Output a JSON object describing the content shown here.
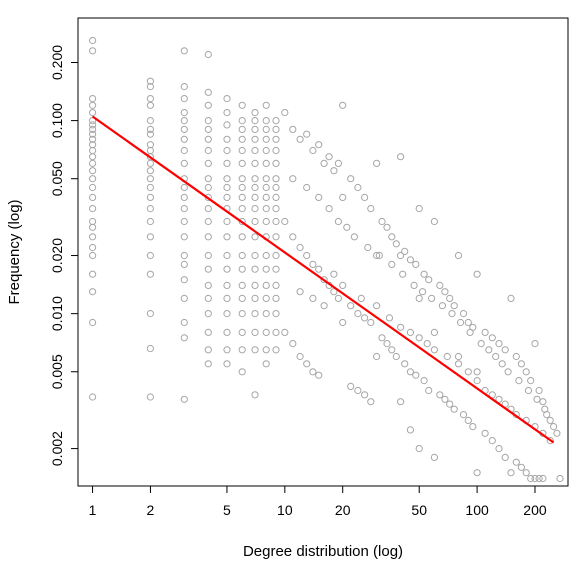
{
  "chart_data": {
    "type": "scatter",
    "title": "",
    "xlabel": "Degree distribution (log)",
    "ylabel": "Frequency (log)",
    "xscale": "log",
    "yscale": "log",
    "xlim": [
      0.84,
      297
    ],
    "ylim": [
      0.00128,
      0.34
    ],
    "xticks": [
      {
        "value": 1,
        "label": "1"
      },
      {
        "value": 2,
        "label": "2"
      },
      {
        "value": 5,
        "label": "5"
      },
      {
        "value": 10,
        "label": "10"
      },
      {
        "value": 20,
        "label": "20"
      },
      {
        "value": 50,
        "label": "50"
      },
      {
        "value": 100,
        "label": "100"
      },
      {
        "value": 200,
        "label": "200"
      }
    ],
    "yticks": [
      {
        "value": 0.002,
        "label": "0.002"
      },
      {
        "value": 0.005,
        "label": "0.005"
      },
      {
        "value": 0.01,
        "label": "0.010"
      },
      {
        "value": 0.02,
        "label": "0.020"
      },
      {
        "value": 0.05,
        "label": "0.050"
      },
      {
        "value": 0.1,
        "label": "0.100"
      },
      {
        "value": 0.2,
        "label": "0.200"
      }
    ],
    "grid": false,
    "point_color": "#a6a6a6",
    "fit_color": "#ff0000",
    "series": [
      {
        "kind": "points",
        "x": [
          1,
          1,
          1,
          1,
          1,
          1,
          1,
          1,
          1,
          1,
          1,
          1,
          1,
          1,
          1,
          1,
          1,
          1,
          1,
          1,
          1,
          1,
          1,
          1,
          1,
          1,
          1,
          1,
          2,
          2,
          2,
          2,
          2,
          2,
          2,
          2,
          2,
          2,
          2,
          2,
          2,
          2,
          2,
          2,
          2,
          2,
          2,
          2,
          2,
          2,
          2,
          3,
          3,
          3,
          3,
          3,
          3,
          3,
          3,
          3,
          3,
          3,
          3,
          3,
          3,
          3,
          3,
          3,
          3,
          3,
          3,
          3,
          3,
          4,
          4,
          4,
          4,
          4,
          4,
          4,
          4,
          4,
          4,
          4,
          4,
          4,
          4,
          4,
          4,
          4,
          4,
          4,
          4,
          4,
          4,
          5,
          5,
          5,
          5,
          5,
          5,
          5,
          5,
          5,
          5,
          5,
          5,
          5,
          5,
          5,
          5,
          5,
          5,
          5,
          5,
          6,
          6,
          6,
          6,
          6,
          6,
          6,
          6,
          6,
          6,
          6,
          6,
          6,
          6,
          6,
          6,
          6,
          6,
          6,
          6,
          7,
          7,
          7,
          7,
          7,
          7,
          7,
          7,
          7,
          7,
          7,
          7,
          7,
          7,
          7,
          7,
          7,
          7,
          7,
          7,
          8,
          8,
          8,
          8,
          8,
          8,
          8,
          8,
          8,
          8,
          8,
          8,
          8,
          8,
          8,
          8,
          8,
          8,
          8,
          8,
          9,
          9,
          9,
          9,
          9,
          9,
          9,
          9,
          9,
          9,
          9,
          9,
          9,
          9,
          9,
          9,
          9,
          9
        ],
        "y": [
          0.26,
          0.23,
          0.13,
          0.12,
          0.11,
          0.1,
          0.095,
          0.09,
          0.085,
          0.08,
          0.075,
          0.07,
          0.065,
          0.06,
          0.055,
          0.05,
          0.045,
          0.04,
          0.035,
          0.03,
          0.028,
          0.025,
          0.022,
          0.02,
          0.016,
          0.013,
          0.009,
          0.0037,
          0.16,
          0.15,
          0.13,
          0.12,
          0.1,
          0.09,
          0.085,
          0.075,
          0.07,
          0.065,
          0.06,
          0.055,
          0.05,
          0.045,
          0.04,
          0.035,
          0.03,
          0.025,
          0.02,
          0.016,
          0.01,
          0.0066,
          0.0037,
          0.23,
          0.15,
          0.13,
          0.11,
          0.1,
          0.09,
          0.08,
          0.07,
          0.06,
          0.05,
          0.045,
          0.04,
          0.035,
          0.03,
          0.025,
          0.02,
          0.018,
          0.015,
          0.012,
          0.009,
          0.0075,
          0.0036,
          0.22,
          0.14,
          0.12,
          0.1,
          0.09,
          0.08,
          0.07,
          0.06,
          0.05,
          0.045,
          0.04,
          0.035,
          0.03,
          0.025,
          0.02,
          0.017,
          0.014,
          0.012,
          0.01,
          0.008,
          0.0065,
          0.0055,
          0.13,
          0.11,
          0.095,
          0.08,
          0.07,
          0.06,
          0.05,
          0.045,
          0.04,
          0.035,
          0.03,
          0.025,
          0.02,
          0.017,
          0.014,
          0.012,
          0.01,
          0.008,
          0.0065,
          0.0055,
          0.12,
          0.1,
          0.09,
          0.08,
          0.07,
          0.06,
          0.05,
          0.045,
          0.04,
          0.035,
          0.03,
          0.025,
          0.02,
          0.017,
          0.014,
          0.012,
          0.01,
          0.008,
          0.0065,
          0.005,
          0.11,
          0.1,
          0.09,
          0.08,
          0.07,
          0.06,
          0.05,
          0.045,
          0.04,
          0.035,
          0.03,
          0.025,
          0.02,
          0.017,
          0.014,
          0.012,
          0.01,
          0.008,
          0.0065,
          0.0038,
          0.12,
          0.1,
          0.09,
          0.08,
          0.07,
          0.06,
          0.05,
          0.045,
          0.04,
          0.035,
          0.03,
          0.025,
          0.02,
          0.017,
          0.014,
          0.012,
          0.01,
          0.008,
          0.0065,
          0.0055,
          0.1,
          0.09,
          0.08,
          0.07,
          0.06,
          0.05,
          0.045,
          0.04,
          0.035,
          0.03,
          0.025,
          0.02,
          0.017,
          0.014,
          0.012,
          0.01,
          0.008,
          0.0065
        ]
      },
      {
        "kind": "points",
        "description_range": {
          "x": [
            10,
            270
          ],
          "y": [
            0.00135,
            0.12
          ]
        },
        "x": [
          10,
          10,
          10,
          11,
          11,
          11,
          12,
          12,
          12,
          13,
          13,
          13,
          14,
          14,
          14,
          15,
          15,
          15,
          16,
          16,
          17,
          17,
          18,
          18,
          19,
          19,
          20,
          20,
          20,
          22,
          22,
          22,
          24,
          24,
          24,
          26,
          26,
          26,
          28,
          28,
          28,
          30,
          30,
          30,
          32,
          32,
          34,
          34,
          36,
          36,
          38,
          38,
          40,
          40,
          40,
          42,
          42,
          45,
          45,
          45,
          48,
          48,
          50,
          50,
          50,
          53,
          53,
          56,
          56,
          60,
          60,
          60,
          64,
          64,
          68,
          68,
          72,
          72,
          76,
          76,
          80,
          80,
          85,
          85,
          90,
          90,
          95,
          95,
          100,
          100,
          100,
          110,
          110,
          120,
          120,
          130,
          130,
          140,
          140,
          150,
          150,
          160,
          160,
          170,
          170,
          180,
          180,
          190,
          190,
          200,
          200,
          210,
          210,
          220,
          220,
          230,
          240,
          250,
          260,
          270,
          12,
          14,
          16,
          18,
          20,
          25,
          30,
          35,
          40,
          45,
          50,
          55,
          60,
          70,
          80,
          90,
          100,
          110,
          120,
          130,
          140,
          150,
          160,
          180,
          200,
          220,
          240,
          11,
          13,
          15,
          17,
          19,
          21,
          23,
          27,
          31,
          36,
          41,
          47,
          52,
          58,
          66,
          74,
          82,
          92,
          105,
          115,
          125,
          135,
          145,
          165,
          185,
          205,
          225
        ],
        "y": [
          0.11,
          0.03,
          0.008,
          0.09,
          0.025,
          0.007,
          0.08,
          0.022,
          0.006,
          0.085,
          0.02,
          0.0055,
          0.07,
          0.018,
          0.005,
          0.075,
          0.017,
          0.0048,
          0.06,
          0.015,
          0.065,
          0.014,
          0.055,
          0.013,
          0.06,
          0.012,
          0.12,
          0.04,
          0.009,
          0.05,
          0.011,
          0.0042,
          0.045,
          0.01,
          0.004,
          0.04,
          0.0095,
          0.0038,
          0.035,
          0.009,
          0.0035,
          0.06,
          0.02,
          0.006,
          0.03,
          0.0075,
          0.028,
          0.007,
          0.025,
          0.0065,
          0.023,
          0.006,
          0.065,
          0.02,
          0.0035,
          0.021,
          0.0055,
          0.019,
          0.005,
          0.0025,
          0.018,
          0.0048,
          0.035,
          0.012,
          0.002,
          0.016,
          0.0045,
          0.015,
          0.004,
          0.03,
          0.008,
          0.0018,
          0.014,
          0.0038,
          0.013,
          0.0036,
          0.012,
          0.0034,
          0.011,
          0.0032,
          0.02,
          0.006,
          0.01,
          0.003,
          0.009,
          0.0028,
          0.0085,
          0.0026,
          0.016,
          0.005,
          0.0015,
          0.008,
          0.0024,
          0.0075,
          0.0022,
          0.007,
          0.002,
          0.0065,
          0.0018,
          0.012,
          0.0015,
          0.006,
          0.0017,
          0.0055,
          0.0016,
          0.005,
          0.0015,
          0.0045,
          0.0014,
          0.007,
          0.0014,
          0.004,
          0.0014,
          0.0035,
          0.0014,
          0.003,
          0.0028,
          0.0026,
          0.0024,
          0.0014,
          0.013,
          0.012,
          0.011,
          0.016,
          0.014,
          0.012,
          0.011,
          0.0095,
          0.0085,
          0.008,
          0.0075,
          0.007,
          0.0065,
          0.006,
          0.0055,
          0.005,
          0.0045,
          0.004,
          0.0038,
          0.0036,
          0.0034,
          0.0032,
          0.003,
          0.0028,
          0.0026,
          0.0024,
          0.0022,
          0.05,
          0.045,
          0.04,
          0.035,
          0.03,
          0.028,
          0.025,
          0.022,
          0.02,
          0.018,
          0.016,
          0.014,
          0.013,
          0.012,
          0.011,
          0.01,
          0.009,
          0.008,
          0.007,
          0.0065,
          0.006,
          0.0055,
          0.005,
          0.0045,
          0.004,
          0.0036,
          0.0032
        ]
      },
      {
        "kind": "fit",
        "x": [
          1,
          250
        ],
        "y": [
          0.105,
          0.00215
        ]
      }
    ]
  }
}
